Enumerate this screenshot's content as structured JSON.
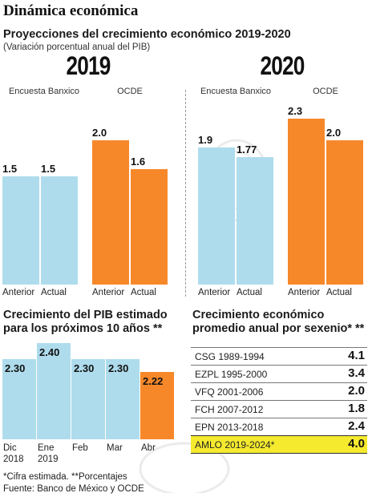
{
  "header": {
    "title": "Dinámica económica",
    "subtitle": "Proyecciones del crecimiento económico 2019-2020",
    "note": "(Variación porcentual anual del PIB)"
  },
  "chart_data": [
    {
      "type": "bar",
      "title": "2019",
      "groups": [
        {
          "name": "Encuesta Banxico",
          "categories": [
            "Anterior",
            "Actual"
          ],
          "values": [
            1.5,
            1.5
          ],
          "labels": [
            "1.5",
            "1.5"
          ],
          "color": "#aedcec"
        },
        {
          "name": "OCDE",
          "categories": [
            "Anterior",
            "Actual"
          ],
          "values": [
            2.0,
            1.6
          ],
          "labels": [
            "2.0",
            "1.6"
          ],
          "color": "#f7882a"
        }
      ]
    },
    {
      "type": "bar",
      "title": "2020",
      "groups": [
        {
          "name": "Encuesta Banxico",
          "categories": [
            "Anterior",
            "Actual"
          ],
          "values": [
            1.9,
            1.77
          ],
          "labels": [
            "1.9",
            "1.77"
          ],
          "color": "#aedcec"
        },
        {
          "name": "OCDE",
          "categories": [
            "Anterior",
            "Actual"
          ],
          "values": [
            2.3,
            2.0
          ],
          "labels": [
            "2.3",
            "2.0"
          ],
          "color": "#f7882a"
        }
      ]
    },
    {
      "type": "bar",
      "title": "Crecimiento del PIB estimado para los próximos 10 años **",
      "categories": [
        [
          "Dic",
          "2018"
        ],
        [
          "Ene",
          "2019"
        ],
        [
          "Feb",
          ""
        ],
        [
          "Mar",
          ""
        ],
        [
          "Abr",
          ""
        ]
      ],
      "values": [
        2.3,
        2.4,
        2.3,
        2.3,
        2.22
      ],
      "labels": [
        "2.30",
        "2.40",
        "2.30",
        "2.30",
        "2.22"
      ],
      "colors": [
        "#aedcec",
        "#aedcec",
        "#aedcec",
        "#aedcec",
        "#f7882a"
      ]
    },
    {
      "type": "table",
      "title": "Crecimiento económico promedio anual por sexenio* **",
      "rows": [
        {
          "label": "CSG 1989-1994",
          "value": "4.1",
          "highlight": false
        },
        {
          "label": "EZPL 1995-2000",
          "value": "3.4",
          "highlight": false
        },
        {
          "label": "VFQ 2001-2006",
          "value": "2.0",
          "highlight": false
        },
        {
          "label": "FCH 2007-2012",
          "value": "1.8",
          "highlight": false
        },
        {
          "label": "EPN 2013-2018",
          "value": "2.4",
          "highlight": false
        },
        {
          "label": "AMLO 2019-2024*",
          "value": "4.0",
          "highlight": true
        }
      ],
      "highlight_color": "#f5ea2e"
    }
  ],
  "footer": {
    "note": "*Cifra estimada. **Porcentajes",
    "source": "Fuente: Banco de México y OCDE"
  }
}
